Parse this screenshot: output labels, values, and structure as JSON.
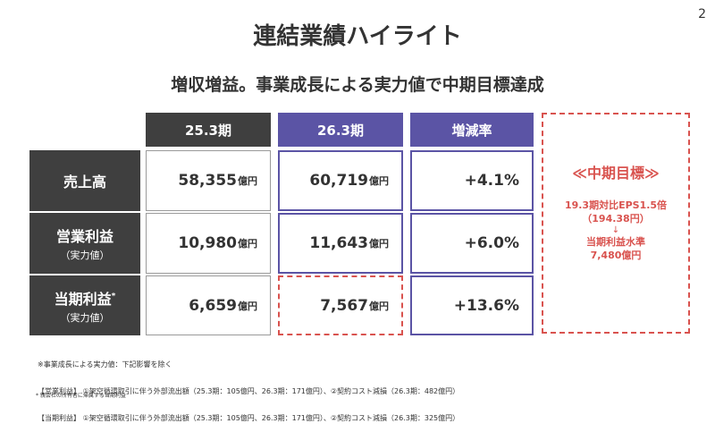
{
  "page_number": "2",
  "title": "連結業績ハイライト",
  "subtitle": "増収増益。事業成長による実力値で中期目標達成",
  "table": {
    "headers": [
      "25.3期",
      "26.3期",
      "増減率"
    ],
    "rows": [
      {
        "label": "売上高",
        "sublabel": "",
        "mark": "",
        "v1": "58,355",
        "v2": "60,719",
        "unit": "億円",
        "rate": "+4.1%"
      },
      {
        "label": "営業利益",
        "sublabel": "（実力値）",
        "mark": "",
        "v1": "10,980",
        "v2": "11,643",
        "unit": "億円",
        "rate": "+6.0%"
      },
      {
        "label": "当期利益",
        "sublabel": "（実力値）",
        "mark": "*",
        "v1": "6,659",
        "v2": "7,567",
        "unit": "億円",
        "rate": "+13.6%"
      }
    ]
  },
  "target": {
    "title": "≪中期目標≫",
    "line1": "19.3期対比EPS1.5倍",
    "line2": "（194.38円）",
    "arrow": "↓",
    "line3": "当期利益水準",
    "line4": "7,480億円"
  },
  "notes": [
    "※事業成長による実力値：下記影響を除く",
    "【営業利益】 ①架空循環取引に伴う外部流出額（25.3期：105億円、26.3期：171億円）、②契約コスト減損（26.3期：482億円）",
    "【当期利益】 ①架空循環取引に伴う外部流出額（25.3期：105億円、26.3期：171億円）、②契約コスト減損（26.3期：325億円）"
  ],
  "footnote": "* 親会社の所有者に帰属する当期利益",
  "colors": {
    "dark": "#3f3f3f",
    "purple": "#5b54a5",
    "accent_red": "#d9534f"
  }
}
